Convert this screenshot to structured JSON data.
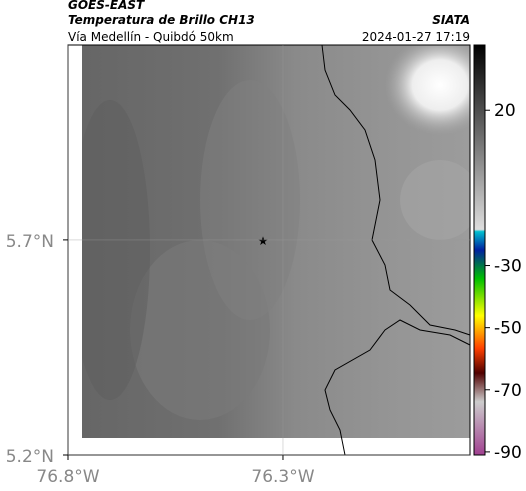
{
  "map": {
    "title": "GOES-EAST",
    "subtitle": "Temperatura de Brillo CH13",
    "source": "SIATA",
    "location": "Vía Medellín - Quibdó 50km",
    "datetime": "2024-01-27 17:19",
    "xlim": [
      -76.8,
      -75.865
    ],
    "ylim": [
      5.2,
      6.153
    ],
    "xticks": [
      {
        "value": -76.8,
        "label": "76.8°W"
      },
      {
        "value": -76.3,
        "label": "76.3°W"
      }
    ],
    "yticks": [
      {
        "value": 5.7,
        "label": "5.7°N"
      },
      {
        "value": 5.2,
        "label": "5.2°N"
      }
    ],
    "colorbar": {
      "lim": [
        41,
        -91
      ],
      "ticks": [
        20,
        -30,
        -50,
        -70,
        -90
      ]
    }
  }
}
